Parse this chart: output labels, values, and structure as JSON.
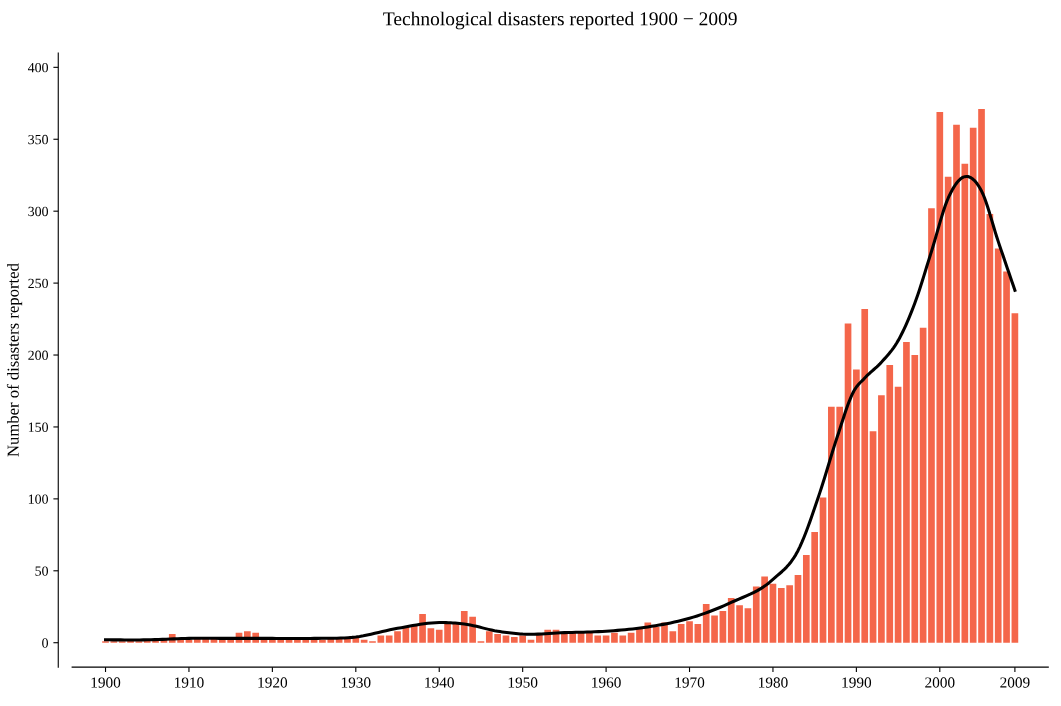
{
  "chart_data": {
    "type": "bar",
    "title": "Technological disasters reported 1900 − 2009",
    "ylabel": "Number of disasters reported",
    "x": [
      1900,
      1901,
      1902,
      1903,
      1904,
      1905,
      1906,
      1907,
      1908,
      1909,
      1910,
      1911,
      1912,
      1913,
      1914,
      1915,
      1916,
      1917,
      1918,
      1919,
      1920,
      1921,
      1922,
      1923,
      1924,
      1925,
      1926,
      1927,
      1928,
      1929,
      1930,
      1931,
      1932,
      1933,
      1934,
      1935,
      1936,
      1937,
      1938,
      1939,
      1940,
      1941,
      1942,
      1943,
      1944,
      1945,
      1946,
      1947,
      1948,
      1949,
      1950,
      1951,
      1952,
      1953,
      1954,
      1955,
      1956,
      1957,
      1958,
      1959,
      1960,
      1961,
      1962,
      1963,
      1964,
      1965,
      1966,
      1967,
      1968,
      1969,
      1970,
      1971,
      1972,
      1973,
      1974,
      1975,
      1976,
      1977,
      1978,
      1979,
      1980,
      1981,
      1982,
      1983,
      1984,
      1985,
      1986,
      1987,
      1988,
      1989,
      1990,
      1991,
      1992,
      1993,
      1994,
      1995,
      1996,
      1997,
      1998,
      1999,
      2000,
      2001,
      2002,
      2003,
      2004,
      2005,
      2006,
      2007,
      2008,
      2009
    ],
    "series": [
      {
        "color": "#f4664a",
        "values": [
          1,
          1,
          1,
          2,
          1,
          2,
          2,
          2,
          6,
          2,
          2,
          3,
          3,
          3,
          3,
          3,
          7,
          8,
          7,
          2,
          3,
          3,
          3,
          3,
          2,
          2,
          2,
          3,
          3,
          3,
          4,
          2,
          1,
          5,
          5,
          8,
          11,
          12,
          20,
          10,
          9,
          13,
          14,
          22,
          18,
          1,
          8,
          6,
          5,
          4,
          5,
          2,
          6,
          9,
          9,
          7,
          7,
          7,
          8,
          5,
          5,
          7,
          5,
          7,
          10,
          14,
          11,
          14,
          8,
          13,
          15,
          13,
          27,
          19,
          22,
          31,
          26,
          24,
          39,
          46,
          41,
          38,
          40,
          47,
          61,
          77,
          101,
          164,
          164,
          222,
          190,
          232,
          147,
          172,
          193,
          178,
          209,
          200,
          219,
          302,
          369,
          324,
          360,
          333,
          358,
          371,
          298,
          274,
          258,
          229
        ]
      },
      {
        "type": "line",
        "color": "#000000",
        "x": [
          1900,
          1905,
          1910,
          1915,
          1920,
          1925,
          1930,
          1935,
          1940,
          1943,
          1947,
          1950,
          1955,
          1960,
          1965,
          1970,
          1975,
          1980,
          1983,
          1985.6,
          1987.7,
          1989.7,
          1991,
          1993,
          1995,
          1997,
          1999,
          2001,
          2003,
          2005,
          2007,
          2009
        ],
        "values": [
          2,
          2,
          3,
          3,
          3,
          3,
          4,
          10,
          14,
          13,
          8,
          6,
          7,
          8,
          11,
          17,
          28,
          44,
          64,
          104,
          143,
          175,
          184,
          195,
          210,
          236,
          272,
          309,
          324,
          314,
          279,
          245
        ]
      }
    ],
    "xlim": [
      1896,
      2013
    ],
    "xticks": [
      1900,
      1910,
      1920,
      1930,
      1940,
      1950,
      1960,
      1970,
      1980,
      1990,
      2000,
      2009
    ],
    "ylim": [
      -17,
      410
    ],
    "yticks": [
      0,
      50,
      100,
      150,
      200,
      250,
      300,
      350,
      400
    ],
    "grid": false,
    "legend": false
  }
}
